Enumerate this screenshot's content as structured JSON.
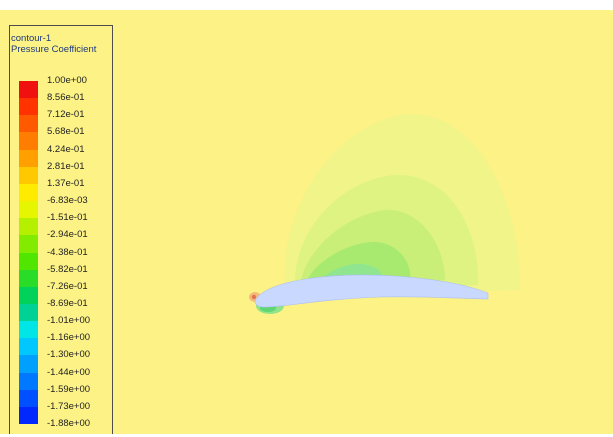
{
  "legend": {
    "title": "contour-1",
    "subtitle": "Pressure Coefficient",
    "levels": [
      {
        "label": "1.00e+00",
        "color": "#f01010"
      },
      {
        "label": "8.56e-01",
        "color": "#ff3200"
      },
      {
        "label": "7.12e-01",
        "color": "#ff5a00"
      },
      {
        "label": "5.68e-01",
        "color": "#ff7d00"
      },
      {
        "label": "4.24e-01",
        "color": "#ffa000"
      },
      {
        "label": "2.81e-01",
        "color": "#ffc800"
      },
      {
        "label": "1.37e-01",
        "color": "#ffeb00"
      },
      {
        "label": "-6.83e-03",
        "color": "#e6f500"
      },
      {
        "label": "-1.51e-01",
        "color": "#b4f000"
      },
      {
        "label": "-2.94e-01",
        "color": "#82eb00"
      },
      {
        "label": "-4.38e-01",
        "color": "#50e600"
      },
      {
        "label": "-5.82e-01",
        "color": "#28dc28"
      },
      {
        "label": "-7.26e-01",
        "color": "#00d25a"
      },
      {
        "label": "-8.69e-01",
        "color": "#00d296"
      },
      {
        "label": "-1.01e+00",
        "color": "#00e6e6"
      },
      {
        "label": "-1.16e+00",
        "color": "#00c8ff"
      },
      {
        "label": "-1.30e+00",
        "color": "#00a0ff"
      },
      {
        "label": "-1.44e+00",
        "color": "#0078ff"
      },
      {
        "label": "-1.59e+00",
        "color": "#0050ff"
      },
      {
        "label": "-1.73e+00",
        "color": "#0028ff"
      },
      {
        "label": "-1.88e+00",
        "color": "#0000e6"
      }
    ]
  },
  "colors": {
    "background": "#fcf286",
    "airfoil": "#c8d8ff",
    "stagnation": "#f0a070"
  }
}
